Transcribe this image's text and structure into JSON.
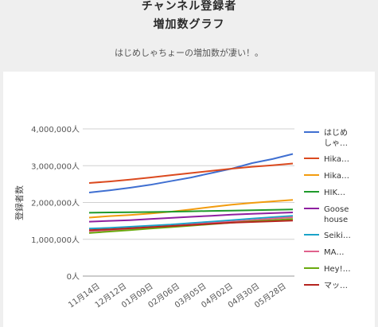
{
  "header": {
    "title_line1": "チャンネル登録者",
    "title_line2": "増加数グラフ",
    "subtitle": "はじめしゃちょーの増加数が凄い！。"
  },
  "chart_data": {
    "type": "line",
    "ylabel": "登録者数",
    "xlabel": "",
    "ylim": [
      0,
      4000000
    ],
    "y_ticks": [
      {
        "value": 0,
        "label": "0人"
      },
      {
        "value": 1000000,
        "label": "1,000,000人"
      },
      {
        "value": 2000000,
        "label": "2,000,000人"
      },
      {
        "value": 3000000,
        "label": "3,000,000人"
      },
      {
        "value": 4000000,
        "label": "4,000,000人"
      }
    ],
    "x_labels": [
      "11月14日",
      "12月12日",
      "01月09日",
      "02月06日",
      "03月05日",
      "04月02日",
      "04月30日",
      "05月28日"
    ],
    "grid": true,
    "legend_position": "right",
    "series": [
      {
        "name": "はじめ しゃ…",
        "color": "#3f6fd1",
        "values": [
          2270000,
          2330000,
          2400000,
          2480000,
          2580000,
          2680000,
          2800000,
          2920000,
          3070000,
          3180000,
          3320000
        ]
      },
      {
        "name": "Hika…",
        "color": "#db4a1f",
        "values": [
          2530000,
          2570000,
          2620000,
          2680000,
          2740000,
          2800000,
          2860000,
          2920000,
          2970000,
          3010000,
          3060000
        ]
      },
      {
        "name": "Hika…",
        "color": "#f29c0f",
        "values": [
          1590000,
          1630000,
          1660000,
          1700000,
          1750000,
          1810000,
          1880000,
          1940000,
          1990000,
          2030000,
          2070000
        ]
      },
      {
        "name": "HIK…",
        "color": "#1e9a2b",
        "values": [
          1720000,
          1730000,
          1735000,
          1740000,
          1750000,
          1760000,
          1770000,
          1780000,
          1790000,
          1800000,
          1810000
        ]
      },
      {
        "name": "Goose house",
        "color": "#8e1fa0",
        "values": [
          1480000,
          1500000,
          1520000,
          1550000,
          1580000,
          1610000,
          1640000,
          1670000,
          1690000,
          1710000,
          1730000
        ]
      },
      {
        "name": "Seiki…",
        "color": "#1ba3c9",
        "values": [
          1290000,
          1310000,
          1340000,
          1370000,
          1400000,
          1440000,
          1480000,
          1520000,
          1560000,
          1600000,
          1640000
        ]
      },
      {
        "name": "MA…",
        "color": "#e0628c",
        "values": [
          1220000,
          1250000,
          1280000,
          1320000,
          1360000,
          1400000,
          1440000,
          1480000,
          1520000,
          1560000,
          1600000
        ]
      },
      {
        "name": "Hey!…",
        "color": "#6aaa0e",
        "values": [
          1170000,
          1210000,
          1250000,
          1290000,
          1330000,
          1370000,
          1410000,
          1450000,
          1490000,
          1520000,
          1550000
        ]
      },
      {
        "name": "マッ…",
        "color": "#b5241f",
        "values": [
          1250000,
          1270000,
          1300000,
          1330000,
          1360000,
          1390000,
          1420000,
          1450000,
          1470000,
          1490000,
          1510000
        ]
      }
    ]
  }
}
